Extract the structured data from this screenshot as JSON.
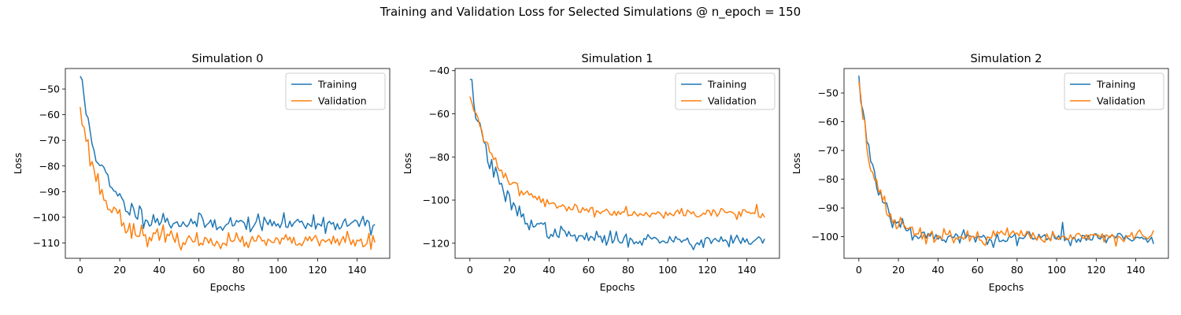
{
  "figure": {
    "suptitle": "Training and Validation Loss for Selected Simulations @ n_epoch = 150"
  },
  "chart_data": [
    {
      "type": "line",
      "title": "Simulation 0",
      "xlabel": "Epochs",
      "ylabel": "Loss",
      "xlim": [
        -7.5,
        156.5
      ],
      "ylim": [
        -116,
        -42
      ],
      "xticks": [
        0,
        20,
        40,
        60,
        80,
        100,
        120,
        140
      ],
      "yticks": [
        -50,
        -60,
        -70,
        -80,
        -90,
        -100,
        -110
      ],
      "grid": false,
      "legend": "top-right",
      "series": [
        {
          "name": "Training",
          "color": "#1f77b4",
          "y0": -45,
          "plateau": -102.5,
          "tau": 11,
          "noise": 1.9,
          "seed": 11,
          "spikes": [
            [
              118,
              -99
            ],
            [
              135,
              -103.5
            ],
            [
              147,
              -107
            ]
          ]
        },
        {
          "name": "Validation",
          "color": "#ff7f0e",
          "y0": -57,
          "plateau": -109.5,
          "tau": 11,
          "noise": 1.6,
          "seed": 23,
          "spikes": [
            [
              20,
              -97
            ],
            [
              42,
              -103
            ],
            [
              75,
              -106
            ],
            [
              135,
              -105.5
            ],
            [
              147,
              -112.5
            ]
          ]
        }
      ]
    },
    {
      "type": "line",
      "title": "Simulation 1",
      "xlabel": "Epochs",
      "ylabel": "Loss",
      "xlim": [
        -7.5,
        156.5
      ],
      "ylim": [
        -127,
        -39
      ],
      "xticks": [
        0,
        20,
        40,
        60,
        80,
        100,
        120,
        140
      ],
      "yticks": [
        -40,
        -60,
        -80,
        -100,
        -120
      ],
      "grid": false,
      "legend": "top-right",
      "series": [
        {
          "name": "Training",
          "color": "#1f77b4",
          "y0": -44,
          "plateau": -118.5,
          "tau": 14,
          "noise": 1.8,
          "seed": 37,
          "spikes": [
            [
              113,
              -123
            ],
            [
              118,
              -122
            ],
            [
              148,
              -120
            ]
          ]
        },
        {
          "name": "Validation",
          "color": "#ff7f0e",
          "y0": -52,
          "plateau": -106,
          "tau": 16,
          "noise": 1.3,
          "seed": 41,
          "spikes": [
            [
              135,
              -109
            ],
            [
              145,
              -102
            ],
            [
              149,
              -108
            ]
          ]
        }
      ]
    },
    {
      "type": "line",
      "title": "Simulation 2",
      "xlabel": "Epochs",
      "ylabel": "Loss",
      "xlim": [
        -7.5,
        156.5
      ],
      "ylim": [
        -107.5,
        -41.5
      ],
      "xticks": [
        0,
        20,
        40,
        60,
        80,
        100,
        120,
        140
      ],
      "yticks": [
        -50,
        -60,
        -70,
        -80,
        -90,
        -100
      ],
      "grid": false,
      "legend": "top-right",
      "series": [
        {
          "name": "Training",
          "color": "#1f77b4",
          "y0": -44,
          "plateau": -100.5,
          "tau": 8.5,
          "noise": 1.4,
          "seed": 53,
          "spikes": [
            [
              103,
              -95
            ],
            [
              120,
              -99
            ],
            [
              149,
              -102.5
            ]
          ]
        },
        {
          "name": "Validation",
          "color": "#ff7f0e",
          "y0": -46,
          "plateau": -100,
          "tau": 8,
          "noise": 1.4,
          "seed": 67,
          "spikes": [
            [
              34,
              -102.5
            ],
            [
              64,
              -103
            ],
            [
              72,
              -98
            ],
            [
              138,
              -98.5
            ],
            [
              147,
              -100
            ]
          ]
        }
      ]
    }
  ]
}
